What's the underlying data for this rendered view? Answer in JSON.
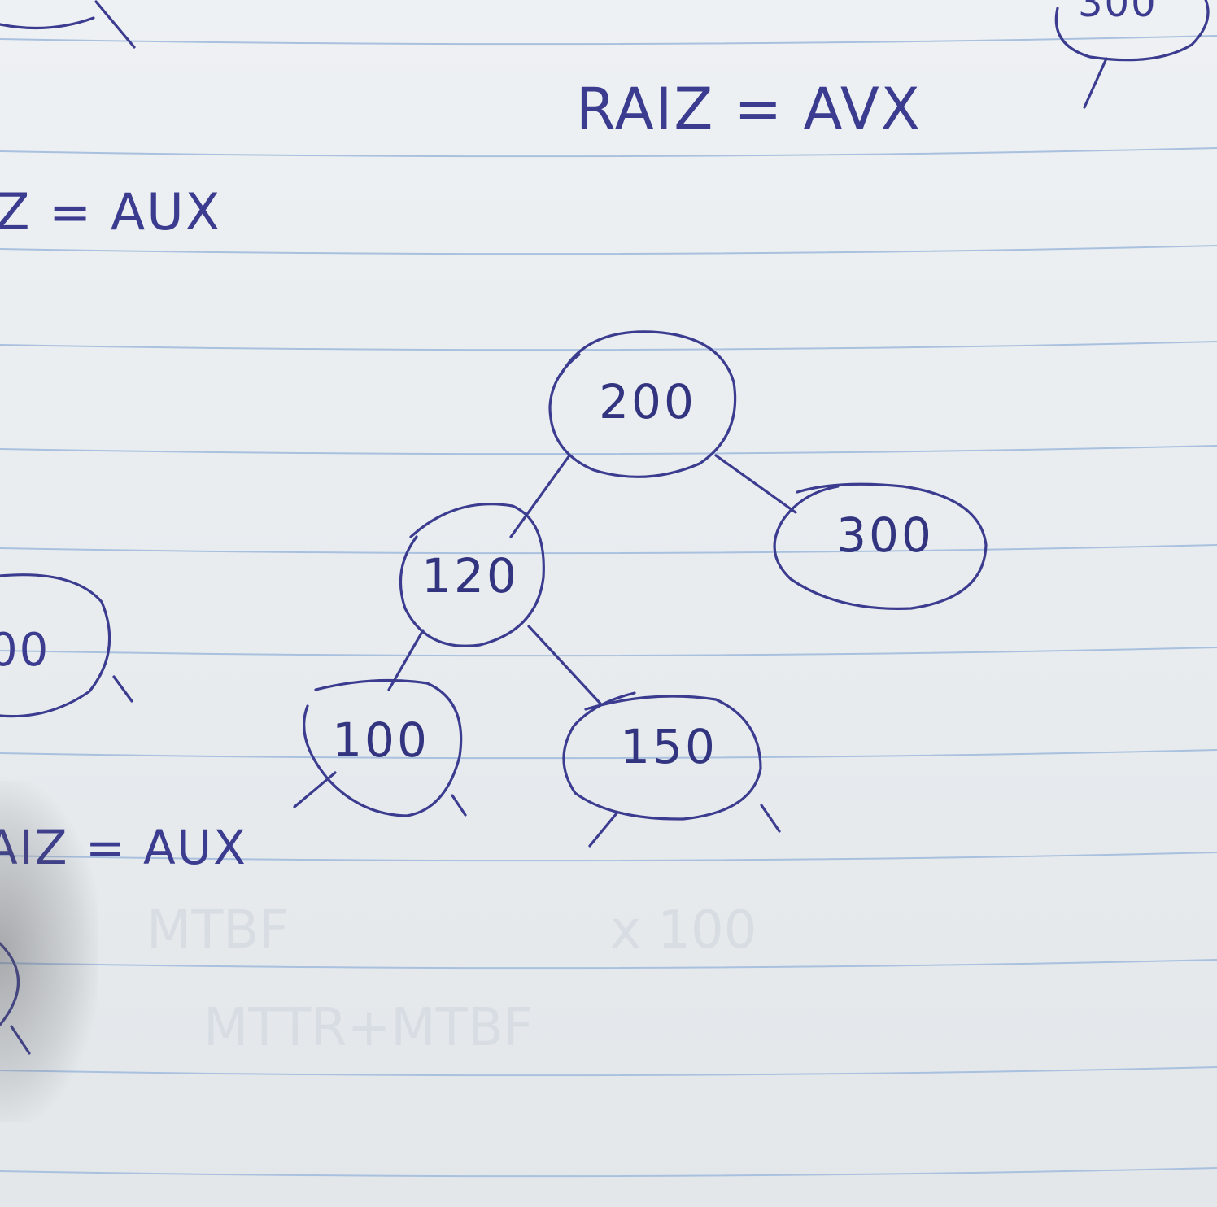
{
  "notes": {
    "top_center": "RAIZ = AVX",
    "left_upper": "Z = AUX",
    "left_lower": "AIZ = AUX",
    "top_right_node_partial": "300",
    "left_node_partial": "00"
  },
  "tree": {
    "root": "200",
    "right_child": "300",
    "left_child": "120",
    "left_left": "100",
    "left_right": "150"
  },
  "ghost_text": {
    "line1": "MTBF",
    "line2": "x 100",
    "line3": "MTTR+MTBF"
  },
  "colors": {
    "ink": "#3b3c8f",
    "paper": "#eef1f3",
    "rule": "#a9c0de"
  }
}
